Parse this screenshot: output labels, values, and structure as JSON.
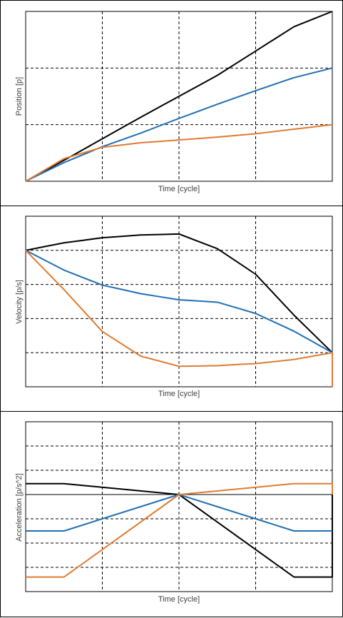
{
  "colors": {
    "fast": "#000000",
    "medium": "#1f6fb4",
    "slow": "#e07b32",
    "grid": "#000000"
  },
  "chart_data": [
    {
      "type": "line",
      "title": "",
      "xlabel": "Time [cycle]",
      "ylabel": "Position [p]",
      "xlim": [
        0,
        4
      ],
      "ylim": [
        0,
        3
      ],
      "grid": true,
      "series": [
        {
          "color": "black",
          "x": [
            0,
            0.5,
            1,
            1.5,
            2,
            2.5,
            3,
            3.5,
            4
          ],
          "y": [
            0,
            0.37,
            0.75,
            1.13,
            1.5,
            1.87,
            2.3,
            2.73,
            3.0
          ]
        },
        {
          "color": "blue",
          "x": [
            0,
            0.5,
            1,
            1.5,
            2,
            2.5,
            3,
            3.5,
            4
          ],
          "y": [
            0,
            0.33,
            0.61,
            0.85,
            1.11,
            1.36,
            1.6,
            1.83,
            2.0
          ]
        },
        {
          "color": "orange",
          "x": [
            0,
            0.5,
            1,
            1.5,
            2,
            2.5,
            3,
            3.5,
            4
          ],
          "y": [
            0,
            0.4,
            0.6,
            0.68,
            0.73,
            0.78,
            0.84,
            0.92,
            1.0
          ]
        }
      ]
    },
    {
      "type": "line",
      "title": "",
      "xlabel": "Time [cycle]",
      "ylabel": "Velocity [p/s]",
      "xlim": [
        0,
        4
      ],
      "ylim": [
        0,
        5
      ],
      "grid": true,
      "series": [
        {
          "color": "black",
          "x": [
            0,
            0.5,
            1,
            1.5,
            2,
            2.5,
            3,
            3.5,
            4
          ],
          "y": [
            4.0,
            4.22,
            4.37,
            4.45,
            4.48,
            4.05,
            3.3,
            2.1,
            1.0
          ]
        },
        {
          "color": "blue",
          "x": [
            0,
            0.5,
            1,
            1.5,
            2,
            2.5,
            3,
            3.5,
            4
          ],
          "y": [
            4.0,
            3.42,
            2.98,
            2.73,
            2.55,
            2.48,
            2.15,
            1.63,
            1.0
          ]
        },
        {
          "color": "orange",
          "x": [
            0,
            0.5,
            1,
            1.5,
            2,
            2.5,
            3,
            3.5,
            4,
            4
          ],
          "y": [
            4.0,
            2.85,
            1.62,
            0.9,
            0.6,
            0.62,
            0.68,
            0.8,
            1.0,
            0.0
          ]
        }
      ]
    },
    {
      "type": "line",
      "title": "",
      "xlabel": "Time [cycle]",
      "ylabel": "Acceleration [p/s^2]",
      "xlim": [
        0,
        4
      ],
      "ylim": [
        -4,
        3
      ],
      "grid": true,
      "series": [
        {
          "color": "black",
          "x": [
            0,
            0.5,
            2,
            3.5,
            4,
            4
          ],
          "y": [
            0.45,
            0.45,
            0,
            -3.4,
            -3.4,
            0
          ]
        },
        {
          "color": "blue",
          "x": [
            0,
            0.5,
            2,
            3.5,
            4
          ],
          "y": [
            -1.5,
            -1.5,
            0,
            -1.5,
            -1.5
          ]
        },
        {
          "color": "orange",
          "x": [
            0,
            0.5,
            2,
            3.5,
            4,
            4
          ],
          "y": [
            -3.4,
            -3.4,
            0,
            0.45,
            0.45,
            0
          ]
        }
      ]
    }
  ]
}
